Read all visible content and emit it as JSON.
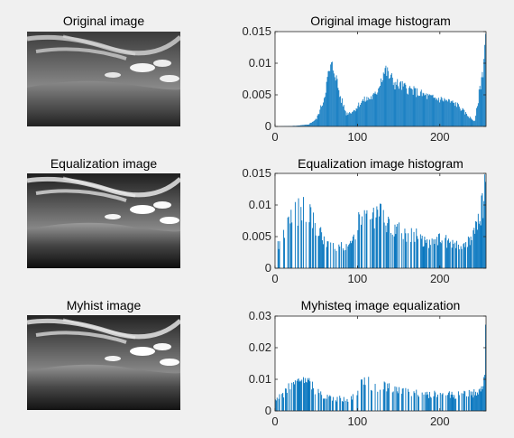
{
  "rows": [
    {
      "image_title": "Original image",
      "hist_title": "Original image histogram"
    },
    {
      "image_title": "Equalization image",
      "hist_title": "Equalization image histogram"
    },
    {
      "image_title": "Myhist image",
      "hist_title": "Myhisteq image equalization"
    }
  ],
  "colors": {
    "bar": "#0072bd",
    "axes_bg": "#ffffff",
    "axis": "#262626"
  },
  "chart_data": [
    {
      "type": "bar",
      "title": "Original image histogram",
      "xlim": [
        0,
        256
      ],
      "ylim": [
        0,
        0.015
      ],
      "xticks": [
        0,
        100,
        200
      ],
      "xtick_labels": [
        "0",
        "100",
        "200"
      ],
      "yticks": [
        0,
        0.005,
        0.01,
        0.015
      ],
      "ytick_labels": [
        "0",
        "0.005",
        "0.01",
        "0.015"
      ],
      "profile": [
        [
          0,
          0
        ],
        [
          25,
          0.0001
        ],
        [
          40,
          0.0003
        ],
        [
          50,
          0.0012
        ],
        [
          58,
          0.004
        ],
        [
          64,
          0.008
        ],
        [
          68,
          0.0095
        ],
        [
          72,
          0.0088
        ],
        [
          78,
          0.005
        ],
        [
          86,
          0.002
        ],
        [
          95,
          0.0025
        ],
        [
          105,
          0.004
        ],
        [
          115,
          0.0045
        ],
        [
          122,
          0.005
        ],
        [
          128,
          0.0075
        ],
        [
          133,
          0.009
        ],
        [
          138,
          0.008
        ],
        [
          145,
          0.0068
        ],
        [
          160,
          0.006
        ],
        [
          175,
          0.0052
        ],
        [
          190,
          0.0045
        ],
        [
          205,
          0.0042
        ],
        [
          220,
          0.0035
        ],
        [
          235,
          0.0015
        ],
        [
          242,
          0.0008
        ],
        [
          248,
          0.006
        ],
        [
          252,
          0.009
        ],
        [
          255,
          0.015
        ]
      ]
    },
    {
      "type": "bar",
      "title": "Equalization image histogram",
      "xlim": [
        0,
        256
      ],
      "ylim": [
        0,
        0.015
      ],
      "xticks": [
        0,
        100,
        200
      ],
      "xtick_labels": [
        "0",
        "100",
        "200"
      ],
      "yticks": [
        0,
        0.005,
        0.01,
        0.015
      ],
      "ytick_labels": [
        "0",
        "0.005",
        "0.01",
        "0.015"
      ],
      "profile": [
        [
          0,
          0.004
        ],
        [
          8,
          0.004
        ],
        [
          15,
          0.007
        ],
        [
          22,
          0.0085
        ],
        [
          30,
          0.009
        ],
        [
          36,
          0.0093
        ],
        [
          42,
          0.0088
        ],
        [
          50,
          0.0065
        ],
        [
          58,
          0.0045
        ],
        [
          66,
          0.0035
        ],
        [
          80,
          0.0035
        ],
        [
          92,
          0.0036
        ],
        [
          98,
          0.0065
        ],
        [
          104,
          0.0088
        ],
        [
          110,
          0.0092
        ],
        [
          118,
          0.0082
        ],
        [
          126,
          0.0085
        ],
        [
          135,
          0.007
        ],
        [
          150,
          0.0058
        ],
        [
          170,
          0.0052
        ],
        [
          185,
          0.004
        ],
        [
          200,
          0.0045
        ],
        [
          215,
          0.004
        ],
        [
          230,
          0.0038
        ],
        [
          240,
          0.005
        ],
        [
          247,
          0.008
        ],
        [
          252,
          0.01
        ],
        [
          255,
          0.015
        ]
      ]
    },
    {
      "type": "bar",
      "title": "Myhisteq image equalization",
      "xlim": [
        0,
        256
      ],
      "ylim": [
        0,
        0.03
      ],
      "xticks": [
        0,
        100,
        200
      ],
      "xtick_labels": [
        "0",
        "100",
        "200"
      ],
      "yticks": [
        0,
        0.01,
        0.02,
        0.03
      ],
      "ytick_labels": [
        "0",
        "0.01",
        "0.02",
        "0.03"
      ],
      "profile": [
        [
          0,
          0.004
        ],
        [
          8,
          0.0045
        ],
        [
          15,
          0.007
        ],
        [
          22,
          0.008
        ],
        [
          30,
          0.0088
        ],
        [
          36,
          0.009
        ],
        [
          42,
          0.0085
        ],
        [
          50,
          0.0065
        ],
        [
          58,
          0.005
        ],
        [
          70,
          0.004
        ],
        [
          90,
          0.0037
        ],
        [
          98,
          0.006
        ],
        [
          104,
          0.0085
        ],
        [
          110,
          0.009
        ],
        [
          120,
          0.008
        ],
        [
          130,
          0.0082
        ],
        [
          140,
          0.0068
        ],
        [
          160,
          0.006
        ],
        [
          180,
          0.0052
        ],
        [
          200,
          0.0055
        ],
        [
          220,
          0.005
        ],
        [
          240,
          0.0055
        ],
        [
          250,
          0.0075
        ],
        [
          254,
          0.01
        ],
        [
          255,
          0.024
        ]
      ]
    }
  ]
}
